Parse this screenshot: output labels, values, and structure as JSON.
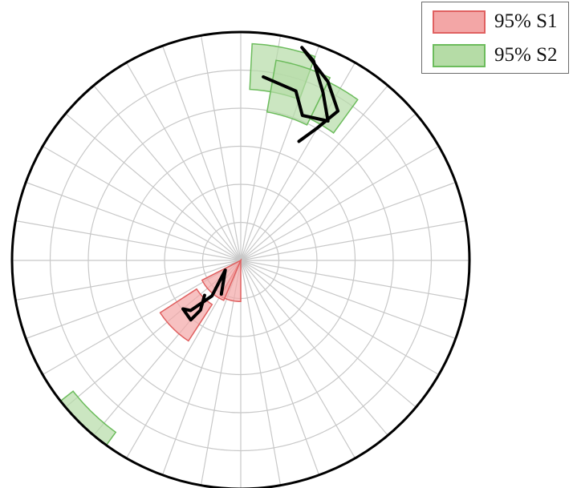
{
  "chart_data": {
    "type": "polar-stereonet",
    "grid": {
      "rings": 6,
      "spokes": 36,
      "color": "#c8c8c8"
    },
    "legend": {
      "position": "top-right",
      "entries": [
        {
          "label": "95% S1",
          "fill": "#f3a6a6",
          "stroke": "#e06060"
        },
        {
          "label": "95% S2",
          "fill": "#b5dca6",
          "stroke": "#6cbc5c"
        }
      ]
    },
    "regions": {
      "s1": [
        {
          "r": [
            0.0,
            0.18
          ],
          "theta": [
            180,
            210
          ]
        },
        {
          "r": [
            0.0,
            0.19
          ],
          "theta": [
            203,
            243
          ]
        },
        {
          "r": [
            0.23,
            0.42
          ],
          "theta": [
            213,
            237
          ]
        }
      ],
      "s2": [
        {
          "r": [
            0.75,
            0.95
          ],
          "theta": [
            3,
            20
          ]
        },
        {
          "r": [
            0.66,
            0.89
          ],
          "theta": [
            10,
            26
          ]
        },
        {
          "r": [
            0.69,
            0.87
          ],
          "theta": [
            26,
            36
          ]
        },
        {
          "r": [
            0.93,
            1.1
          ],
          "theta": [
            216,
            232
          ]
        }
      ]
    },
    "paths": {
      "s2_track": [
        [
          0.81,
          7
        ],
        [
          0.78,
          18
        ],
        [
          0.69,
          23
        ],
        [
          0.72,
          32
        ],
        [
          0.82,
          26
        ],
        [
          0.93,
          20
        ],
        [
          0.97,
          16
        ],
        [
          0.87,
          26
        ],
        [
          0.78,
          33
        ],
        [
          0.67,
          30
        ],
        [
          0.58,
          26
        ]
      ],
      "s1_track": [
        [
          0.17,
          210
        ],
        [
          0.08,
          238
        ],
        [
          0.2,
          219
        ],
        [
          0.31,
          225
        ],
        [
          0.33,
          230
        ],
        [
          0.34,
          220
        ],
        [
          0.28,
          219
        ],
        [
          0.22,
          226
        ]
      ]
    }
  }
}
